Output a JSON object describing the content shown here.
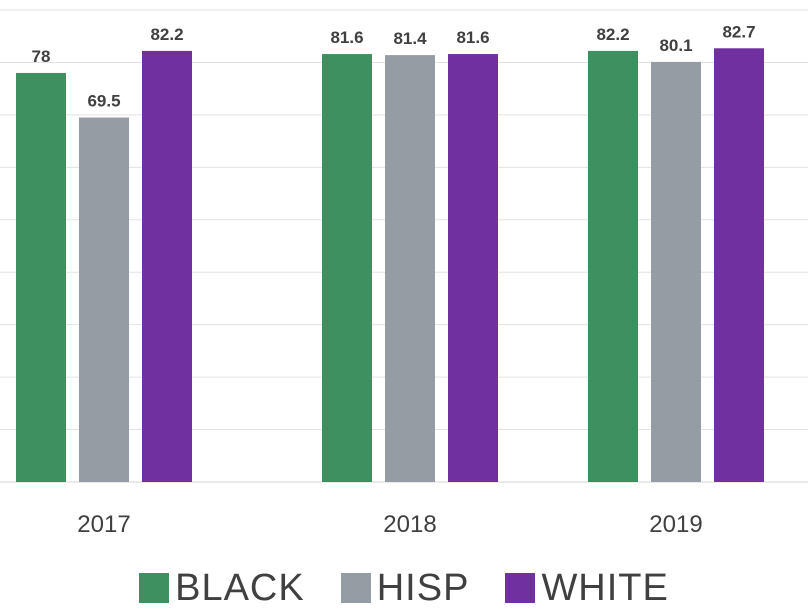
{
  "chart_data": {
    "type": "bar",
    "title": "",
    "xlabel": "",
    "ylabel": "",
    "ylim": [
      0,
      90
    ],
    "grid": true,
    "legend_position": "bottom",
    "categories": [
      "2017",
      "2018",
      "2019"
    ],
    "series": [
      {
        "name": "BLACK",
        "color": "#3e9060",
        "values": [
          78,
          81.6,
          82.2
        ],
        "labels": [
          "78",
          "81.6",
          "82.2"
        ]
      },
      {
        "name": "HISP",
        "color": "#969ca3",
        "values": [
          69.5,
          81.4,
          80.1
        ],
        "labels": [
          "69.5",
          "81.4",
          "80.1"
        ]
      },
      {
        "name": "WHITE",
        "color": "#7030a0",
        "values": [
          82.2,
          81.6,
          82.7
        ],
        "labels": [
          "82.2",
          "81.6",
          "82.7"
        ]
      }
    ]
  }
}
